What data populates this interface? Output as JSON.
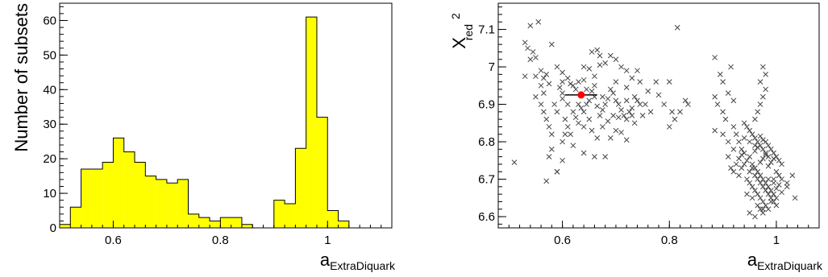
{
  "chart_data": [
    {
      "type": "bar",
      "subtype": "histogram",
      "fill_color": "#ffff00",
      "line_color": "#000000",
      "bin_edges": [
        0.5,
        0.52,
        0.54,
        0.56,
        0.58,
        0.6,
        0.62,
        0.64,
        0.66,
        0.68,
        0.7,
        0.72,
        0.74,
        0.76,
        0.78,
        0.8,
        0.82,
        0.84,
        0.86,
        0.88,
        0.9,
        0.92,
        0.94,
        0.96,
        0.98,
        1.0,
        1.02,
        1.04,
        1.06,
        1.08,
        1.1,
        1.12
      ],
      "values": [
        1,
        6,
        17,
        17,
        19,
        26,
        22,
        19,
        15,
        14,
        13,
        14,
        4,
        3,
        2,
        3,
        3,
        1,
        0,
        0,
        8,
        7,
        23,
        61,
        32,
        5,
        2,
        0,
        0,
        0,
        0
      ],
      "xlim": [
        0.5,
        1.12
      ],
      "ylim": [
        0,
        65
      ],
      "xticks": [
        "0.6",
        "0.8",
        "1"
      ],
      "yticks": [
        "0",
        "10",
        "20",
        "30",
        "40",
        "50",
        "60"
      ],
      "xlabel": "a",
      "xlabel_sub": "ExtraDiquark",
      "ylabel": "Number of subsets",
      "grid": false
    },
    {
      "type": "scatter",
      "marker": "x",
      "marker_color": "#444444",
      "xlim": [
        0.48,
        1.08
      ],
      "ylim": [
        6.57,
        7.17
      ],
      "xticks": [
        "0.6",
        "0.8",
        "1"
      ],
      "yticks": [
        "6.6",
        "6.7",
        "6.8",
        "6.9",
        "7",
        "7.1"
      ],
      "xlabel": "a",
      "xlabel_sub": "ExtraDiquark",
      "ylabel": "X",
      "ylabel_sup": "2",
      "ylabel_sub": "red",
      "grid": false,
      "highlight": {
        "x": 0.635,
        "y": 6.925,
        "xerr": [
          0.605,
          0.665
        ],
        "color": "#ff0000"
      },
      "points": [
        [
          0.51,
          6.745
        ],
        [
          0.54,
          7.11
        ],
        [
          0.555,
          7.12
        ],
        [
          0.53,
          7.065
        ],
        [
          0.535,
          7.05
        ],
        [
          0.54,
          7.02
        ],
        [
          0.545,
          7.04
        ],
        [
          0.55,
          7.025
        ],
        [
          0.53,
          6.975
        ],
        [
          0.58,
          7.06
        ],
        [
          0.56,
          6.99
        ],
        [
          0.57,
          6.98
        ],
        [
          0.575,
          6.955
        ],
        [
          0.59,
          7.0
        ],
        [
          0.6,
          6.985
        ],
        [
          0.61,
          6.97
        ],
        [
          0.62,
          6.95
        ],
        [
          0.63,
          6.96
        ],
        [
          0.64,
          7.0
        ],
        [
          0.65,
          6.995
        ],
        [
          0.66,
          6.975
        ],
        [
          0.67,
          7.005
        ],
        [
          0.68,
          7.01
        ],
        [
          0.69,
          7.03
        ],
        [
          0.7,
          7.02
        ],
        [
          0.71,
          7.0
        ],
        [
          0.72,
          6.99
        ],
        [
          0.73,
          6.97
        ],
        [
          0.74,
          6.99
        ],
        [
          0.745,
          6.96
        ],
        [
          0.55,
          6.92
        ],
        [
          0.56,
          6.9
        ],
        [
          0.565,
          6.88
        ],
        [
          0.57,
          6.86
        ],
        [
          0.575,
          6.84
        ],
        [
          0.58,
          6.82
        ],
        [
          0.585,
          6.9
        ],
        [
          0.59,
          6.88
        ],
        [
          0.6,
          6.915
        ],
        [
          0.605,
          6.86
        ],
        [
          0.61,
          6.84
        ],
        [
          0.615,
          6.82
        ],
        [
          0.62,
          6.88
        ],
        [
          0.625,
          6.865
        ],
        [
          0.63,
          6.9
        ],
        [
          0.635,
          6.89
        ],
        [
          0.64,
          6.88
        ],
        [
          0.645,
          6.9
        ],
        [
          0.65,
          6.91
        ],
        [
          0.655,
          6.935
        ],
        [
          0.66,
          6.92
        ],
        [
          0.665,
          6.895
        ],
        [
          0.67,
          6.87
        ],
        [
          0.675,
          6.885
        ],
        [
          0.68,
          6.9
        ],
        [
          0.685,
          6.915
        ],
        [
          0.69,
          6.94
        ],
        [
          0.695,
          6.93
        ],
        [
          0.7,
          6.91
        ],
        [
          0.705,
          6.9
        ],
        [
          0.71,
          6.885
        ],
        [
          0.715,
          6.87
        ],
        [
          0.72,
          6.86
        ],
        [
          0.725,
          6.88
        ],
        [
          0.73,
          6.87
        ],
        [
          0.735,
          6.85
        ],
        [
          0.74,
          6.91
        ],
        [
          0.75,
          6.87
        ],
        [
          0.755,
          6.9
        ],
        [
          0.765,
          6.88
        ],
        [
          0.58,
          6.78
        ],
        [
          0.575,
          6.76
        ],
        [
          0.57,
          6.695
        ],
        [
          0.59,
          6.72
        ],
        [
          0.6,
          6.8
        ],
        [
          0.605,
          6.82
        ],
        [
          0.62,
          6.79
        ],
        [
          0.64,
          6.77
        ],
        [
          0.655,
          6.83
        ],
        [
          0.665,
          6.81
        ],
        [
          0.675,
          6.84
        ],
        [
          0.69,
          6.81
        ],
        [
          0.7,
          6.83
        ],
        [
          0.71,
          6.825
        ],
        [
          0.72,
          6.805
        ],
        [
          0.66,
          6.76
        ],
        [
          0.68,
          6.76
        ],
        [
          0.56,
          6.95
        ],
        [
          0.565,
          6.93
        ],
        [
          0.595,
          6.945
        ],
        [
          0.625,
          6.94
        ],
        [
          0.645,
          6.94
        ],
        [
          0.66,
          6.95
        ],
        [
          0.675,
          6.92
        ],
        [
          0.7,
          6.96
        ],
        [
          0.72,
          6.945
        ],
        [
          0.735,
          6.92
        ],
        [
          0.76,
          6.935
        ],
        [
          0.775,
          6.96
        ],
        [
          0.78,
          6.925
        ],
        [
          0.79,
          6.9
        ],
        [
          0.8,
          6.96
        ],
        [
          0.805,
          6.88
        ],
        [
          0.81,
          6.86
        ],
        [
          0.82,
          6.88
        ],
        [
          0.83,
          6.91
        ],
        [
          0.835,
          6.9
        ],
        [
          0.8,
          6.84
        ],
        [
          0.815,
          7.105
        ],
        [
          0.6,
          6.93
        ],
        [
          0.61,
          6.9
        ],
        [
          0.615,
          6.955
        ],
        [
          0.64,
          6.965
        ],
        [
          0.65,
          6.86
        ],
        [
          0.685,
          6.855
        ],
        [
          0.695,
          6.87
        ],
        [
          0.705,
          6.865
        ],
        [
          0.72,
          6.91
        ],
        [
          0.73,
          6.89
        ],
        [
          0.745,
          6.9
        ],
        [
          0.55,
          6.975
        ],
        [
          0.565,
          6.97
        ],
        [
          0.6,
          6.96
        ],
        [
          0.63,
          6.85
        ],
        [
          0.64,
          6.84
        ],
        [
          0.655,
          7.04
        ],
        [
          0.665,
          7.045
        ],
        [
          0.67,
          7.03
        ],
        [
          0.59,
          6.72
        ],
        [
          0.6,
          6.75
        ],
        [
          0.885,
          7.025
        ],
        [
          0.895,
          6.98
        ],
        [
          0.9,
          6.96
        ],
        [
          0.91,
          6.93
        ],
        [
          0.915,
          7.0
        ],
        [
          0.92,
          6.91
        ],
        [
          0.885,
          6.92
        ],
        [
          0.89,
          6.9
        ],
        [
          0.9,
          6.88
        ],
        [
          0.905,
          6.86
        ],
        [
          0.885,
          6.83
        ],
        [
          0.9,
          6.82
        ],
        [
          0.91,
          6.8
        ],
        [
          0.92,
          6.84
        ],
        [
          0.925,
          6.82
        ],
        [
          0.93,
          6.8
        ],
        [
          0.935,
          6.78
        ],
        [
          0.94,
          6.77
        ],
        [
          0.945,
          6.75
        ],
        [
          0.95,
          6.76
        ],
        [
          0.955,
          6.74
        ],
        [
          0.96,
          6.73
        ],
        [
          0.965,
          6.72
        ],
        [
          0.97,
          6.71
        ],
        [
          0.975,
          6.7
        ],
        [
          0.98,
          6.69
        ],
        [
          0.985,
          6.68
        ],
        [
          0.99,
          6.67
        ],
        [
          0.995,
          6.66
        ],
        [
          1.0,
          6.65
        ],
        [
          0.93,
          6.71
        ],
        [
          0.935,
          6.73
        ],
        [
          0.94,
          6.74
        ],
        [
          0.945,
          6.7
        ],
        [
          0.95,
          6.69
        ],
        [
          0.955,
          6.68
        ],
        [
          0.96,
          6.67
        ],
        [
          0.965,
          6.66
        ],
        [
          0.97,
          6.65
        ],
        [
          0.975,
          6.64
        ],
        [
          0.97,
          6.62
        ],
        [
          0.975,
          6.61
        ],
        [
          0.98,
          6.63
        ],
        [
          0.985,
          6.62
        ],
        [
          0.99,
          6.64
        ],
        [
          0.995,
          6.7
        ],
        [
          1.0,
          6.72
        ],
        [
          1.01,
          6.7
        ],
        [
          1.02,
          6.69
        ],
        [
          1.03,
          6.71
        ],
        [
          1.035,
          6.65
        ],
        [
          1.0,
          6.63
        ],
        [
          0.94,
          6.85
        ],
        [
          0.945,
          6.84
        ],
        [
          0.95,
          6.83
        ],
        [
          0.955,
          6.82
        ],
        [
          0.96,
          6.81
        ],
        [
          0.965,
          6.8
        ],
        [
          0.97,
          6.79
        ],
        [
          0.975,
          6.78
        ],
        [
          0.98,
          6.77
        ],
        [
          0.985,
          6.76
        ],
        [
          0.96,
          6.86
        ],
        [
          0.965,
          6.88
        ],
        [
          0.97,
          6.9
        ],
        [
          0.975,
          6.92
        ],
        [
          0.98,
          6.94
        ],
        [
          0.97,
          6.96
        ],
        [
          0.975,
          7.0
        ],
        [
          0.98,
          6.98
        ],
        [
          0.93,
          6.755
        ],
        [
          0.935,
          6.765
        ],
        [
          0.96,
          6.775
        ],
        [
          0.965,
          6.785
        ],
        [
          0.97,
          6.745
        ],
        [
          0.975,
          6.755
        ],
        [
          0.98,
          6.765
        ],
        [
          0.985,
          6.735
        ],
        [
          0.99,
          6.745
        ],
        [
          0.995,
          6.755
        ],
        [
          0.95,
          6.72
        ],
        [
          0.955,
          6.73
        ],
        [
          0.96,
          6.71
        ],
        [
          0.965,
          6.7
        ],
        [
          0.97,
          6.69
        ],
        [
          0.975,
          6.68
        ],
        [
          0.98,
          6.67
        ],
        [
          0.985,
          6.66
        ],
        [
          0.99,
          6.65
        ],
        [
          0.995,
          6.64
        ],
        [
          1.0,
          6.675
        ],
        [
          1.005,
          6.685
        ],
        [
          1.01,
          6.665
        ],
        [
          0.915,
          6.73
        ],
        [
          0.92,
          6.72
        ],
        [
          0.925,
          6.74
        ],
        [
          0.91,
          6.76
        ],
        [
          0.92,
          6.78
        ],
        [
          0.94,
          6.81
        ],
        [
          0.95,
          6.8
        ],
        [
          0.96,
          6.79
        ],
        [
          0.97,
          6.815
        ],
        [
          0.975,
          6.805
        ],
        [
          0.98,
          6.8
        ],
        [
          0.985,
          6.79
        ],
        [
          0.99,
          6.78
        ],
        [
          0.995,
          6.77
        ],
        [
          1.0,
          6.76
        ],
        [
          1.005,
          6.75
        ],
        [
          1.01,
          6.74
        ],
        [
          0.945,
          6.66
        ],
        [
          0.955,
          6.65
        ],
        [
          0.965,
          6.63
        ],
        [
          0.975,
          6.62
        ],
        [
          0.985,
          6.7
        ],
        [
          0.995,
          6.69
        ],
        [
          1.005,
          6.71
        ],
        [
          1.02,
          6.68
        ],
        [
          0.95,
          6.61
        ],
        [
          0.96,
          6.6
        ]
      ]
    }
  ]
}
